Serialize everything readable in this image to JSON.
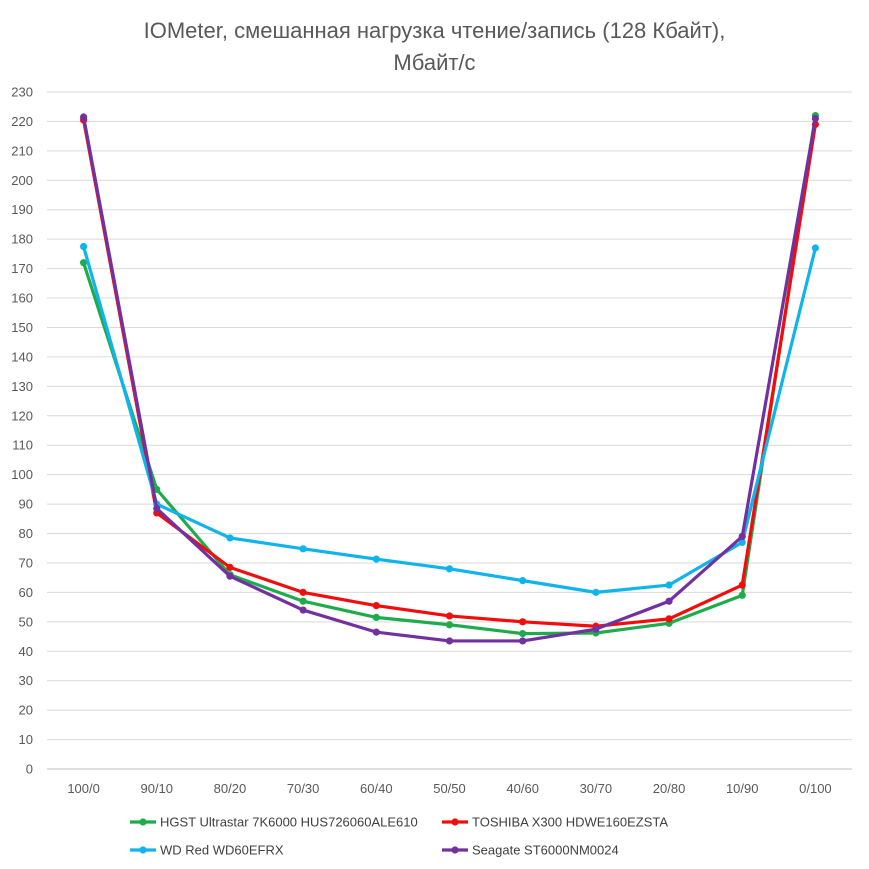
{
  "chart_data": {
    "type": "line",
    "title_lines": [
      "IOMeter, смешанная нагрузка чтение/запись (128 Кбайт),",
      "Мбайт/с"
    ],
    "xlabel": "",
    "ylabel": "",
    "categories": [
      "100/0",
      "90/10",
      "80/20",
      "70/30",
      "60/40",
      "50/50",
      "40/60",
      "30/70",
      "20/80",
      "10/90",
      "0/100"
    ],
    "ylim": [
      0,
      230
    ],
    "ytick_step": 10,
    "yticks": [
      "0",
      "10",
      "20",
      "30",
      "40",
      "50",
      "60",
      "70",
      "80",
      "90",
      "100",
      "110",
      "120",
      "130",
      "140",
      "150",
      "160",
      "170",
      "180",
      "190",
      "200",
      "210",
      "220",
      "230"
    ],
    "grid": "horizontal",
    "legend_position": "bottom",
    "series": [
      {
        "name": "HGST Ultrastar 7K6000 HUS726060ALE610",
        "color": "#1EAB4B",
        "values": [
          172,
          95,
          66,
          57,
          51.5,
          49,
          46,
          46.2,
          49.5,
          59,
          222
        ]
      },
      {
        "name": "TOSHIBA X300 HDWE160EZSTA",
        "color": "#F20D0D",
        "values": [
          220.5,
          87,
          68.5,
          60,
          55.5,
          52,
          50,
          48.5,
          51,
          62.5,
          219
        ]
      },
      {
        "name": "WD Red WD60EFRX",
        "color": "#10B4EC",
        "values": [
          177.5,
          90,
          78.5,
          74.8,
          71.3,
          68,
          64,
          60,
          62.5,
          77,
          177
        ]
      },
      {
        "name": "Seagate ST6000NM0024",
        "color": "#7230A0",
        "values": [
          221.5,
          88.5,
          65.5,
          54,
          46.5,
          43.5,
          43.5,
          47.5,
          57,
          79,
          221
        ]
      }
    ]
  }
}
